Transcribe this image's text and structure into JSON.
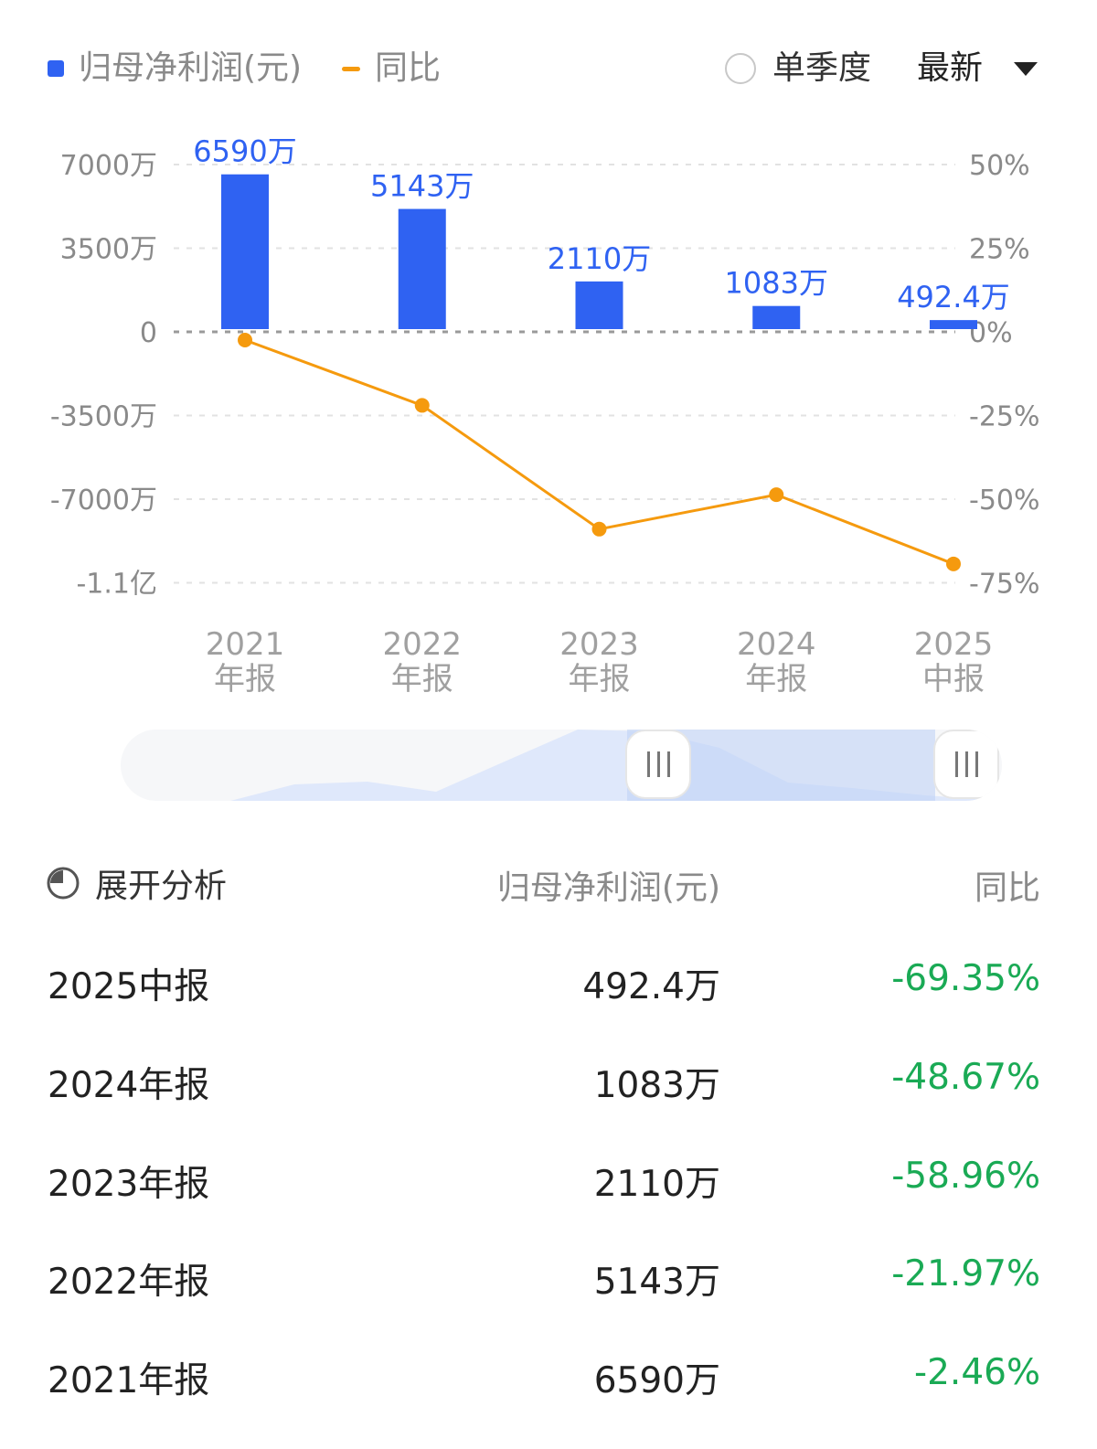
{
  "legend": {
    "bar_label": "归母净利润(元)",
    "line_label": "同比"
  },
  "controls": {
    "quarter_label": "单季度",
    "quarter_checked": false,
    "latest_label": "最新"
  },
  "chart_data": {
    "type": "bar+line",
    "categories": [
      [
        "2021",
        "年报"
      ],
      [
        "2022",
        "年报"
      ],
      [
        "2023",
        "年报"
      ],
      [
        "2024",
        "年报"
      ],
      [
        "2025",
        "中报"
      ]
    ],
    "series": [
      {
        "name": "归母净利润(元)",
        "type": "bar",
        "axis": "left",
        "values": [
          65900000,
          51430000,
          21100000,
          10830000,
          4924000
        ],
        "labels": [
          "6590万",
          "5143万",
          "2110万",
          "1083万",
          "492.4万"
        ],
        "color": "#2f62f2"
      },
      {
        "name": "同比",
        "type": "line",
        "axis": "right",
        "values": [
          -2.46,
          -21.97,
          -58.96,
          -48.67,
          -69.35
        ],
        "color": "#f59a0e"
      }
    ],
    "left_axis": {
      "ticks": [
        "7000万",
        "3500万",
        "0",
        "-3500万",
        "-7000万",
        "-1.1亿"
      ],
      "tick_values": [
        70000000,
        35000000,
        0,
        -35000000,
        -70000000,
        -105000000
      ]
    },
    "right_axis": {
      "ticks": [
        "50%",
        "25%",
        "0%",
        "-25%",
        "-50%",
        "-75%"
      ],
      "tick_values": [
        50,
        25,
        0,
        -25,
        -50,
        -75
      ]
    },
    "grid": true
  },
  "table": {
    "expand_label": "展开分析",
    "col_value": "归母净利润(元)",
    "col_yoy": "同比",
    "rows": [
      {
        "period": "2025中报",
        "value": "492.4万",
        "yoy": "-69.35%"
      },
      {
        "period": "2024年报",
        "value": "1083万",
        "yoy": "-48.67%"
      },
      {
        "period": "2023年报",
        "value": "2110万",
        "yoy": "-58.96%"
      },
      {
        "period": "2022年报",
        "value": "5143万",
        "yoy": "-21.97%"
      },
      {
        "period": "2021年报",
        "value": "6590万",
        "yoy": "-2.46%"
      }
    ]
  }
}
